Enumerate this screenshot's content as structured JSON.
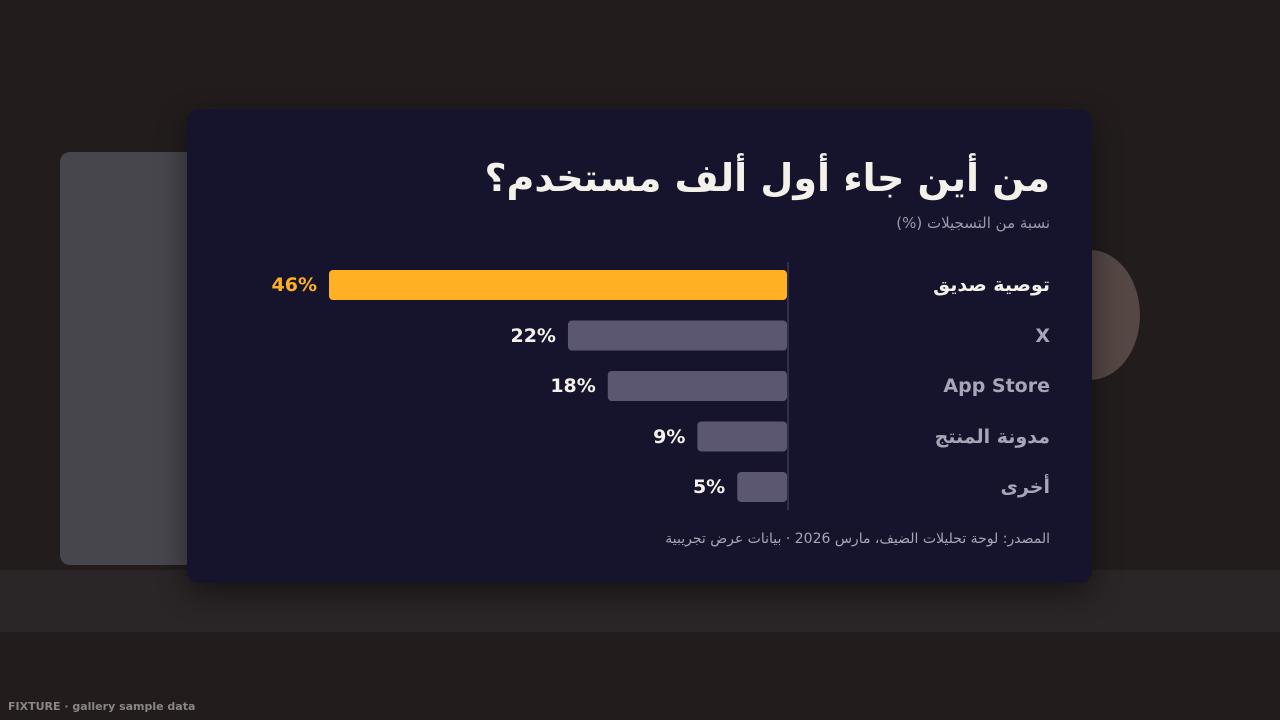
{
  "chart_data": {
    "type": "bar",
    "orientation": "horizontal",
    "title": "من أين جاء أول ألف مستخدم؟",
    "subtitle": "نسبة من التسجيلات (%)",
    "categories": [
      "توصية صديق",
      "X",
      "App Store",
      "مدونة المنتج",
      "أخرى"
    ],
    "values": [
      46,
      22,
      18,
      9,
      5
    ],
    "value_labels": [
      "46%",
      "22%",
      "18%",
      "9%",
      "5%"
    ],
    "colors": [
      "#ffb023",
      "#5b5770",
      "#5b5770",
      "#5b5770",
      "#5b5770"
    ],
    "xlim": [
      0,
      46
    ],
    "source": "المصدر: لوحة تحليلات الضيف، مارس 2026 · بيانات عرض تجريبية"
  },
  "footer": "FIXTURE · gallery sample data"
}
